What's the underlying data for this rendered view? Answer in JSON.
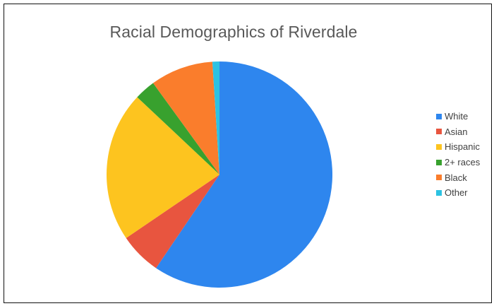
{
  "chart_data": {
    "type": "pie",
    "title": "Racial Demographics of Riverdale",
    "categories": [
      "White",
      "Asian",
      "Hispanic",
      "2+ races",
      "Black",
      "Other"
    ],
    "values": [
      59.5,
      6.0,
      21.5,
      3.0,
      9.0,
      1.0
    ],
    "colors": [
      "#2E86EE",
      "#E8553F",
      "#FDC41F",
      "#38A12E",
      "#FA7D2C",
      "#2CC2E2"
    ],
    "legend_position": "right"
  }
}
